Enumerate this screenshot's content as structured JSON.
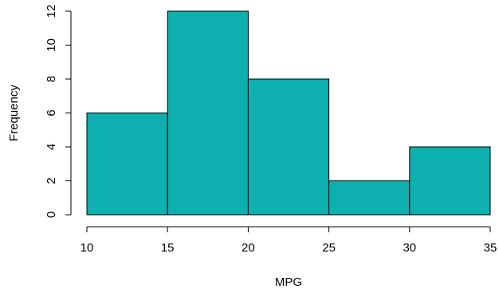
{
  "chart_data": {
    "type": "bar",
    "subtype": "histogram",
    "bins": [
      {
        "from": 10,
        "to": 15,
        "count": 6
      },
      {
        "from": 15,
        "to": 20,
        "count": 12
      },
      {
        "from": 20,
        "to": 25,
        "count": 8
      },
      {
        "from": 25,
        "to": 30,
        "count": 2
      },
      {
        "from": 30,
        "to": 35,
        "count": 4
      }
    ],
    "xlabel": "MPG",
    "ylabel": "Frequency",
    "xlim": [
      10,
      35
    ],
    "ylim": [
      0,
      12
    ],
    "x_ticks": [
      10,
      15,
      20,
      25,
      30,
      35
    ],
    "y_ticks": [
      0,
      2,
      4,
      6,
      8,
      10,
      12
    ],
    "grid": false,
    "bar_color": "#0DAFAF",
    "edge_color": "#000000"
  }
}
